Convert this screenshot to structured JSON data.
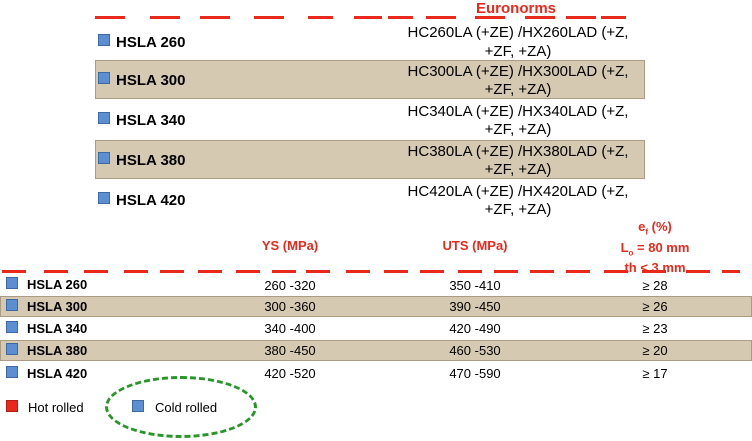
{
  "top_table": {
    "header": "Euronorms",
    "rows": [
      {
        "name": "HSLA 260",
        "norm_line1": "HC260LA (+ZE) /HX260LAD (+Z,",
        "norm_line2": "+ZF, +ZA)"
      },
      {
        "name": "HSLA 300",
        "norm_line1": "HC300LA (+ZE) /HX300LAD (+Z,",
        "norm_line2": "+ZF, +ZA)"
      },
      {
        "name": "HSLA 340",
        "norm_line1": "HC340LA (+ZE) /HX340LAD (+Z,",
        "norm_line2": "+ZF, +ZA)"
      },
      {
        "name": "HSLA 380",
        "norm_line1": "HC380LA (+ZE) /HX380LAD (+Z,",
        "norm_line2": "+ZF, +ZA)"
      },
      {
        "name": "HSLA 420",
        "norm_line1": "HC420LA (+ZE) /HX420LAD (+Z,",
        "norm_line2": "+ZF, +ZA)"
      }
    ]
  },
  "bottom_table": {
    "headers": {
      "ys": "YS (MPa)",
      "uts": "UTS (MPa)",
      "ef_e": "e",
      "ef_sub": "f",
      "ef_pct": " (%)",
      "ef_l": "L",
      "ef_lsub": "o",
      "ef_lval": " = 80 mm",
      "ef_th": "th < 3 mm"
    },
    "rows": [
      {
        "name": "HSLA 260",
        "ys": "260 -320",
        "uts": "350 -410",
        "ef": "≥ 28"
      },
      {
        "name": "HSLA 300",
        "ys": "300 -360",
        "uts": "390 -450",
        "ef": "≥ 26"
      },
      {
        "name": "HSLA 340",
        "ys": "340 -400",
        "uts": "420 -490",
        "ef": "≥ 23"
      },
      {
        "name": "HSLA 380",
        "ys": "380 -450",
        "uts": "460 -530",
        "ef": "≥ 20"
      },
      {
        "name": "HSLA 420",
        "ys": "420 -520",
        "uts": "470 -590",
        "ef": "≥ 17"
      }
    ]
  },
  "legend": {
    "hot": "Hot rolled",
    "cold": "Cold rolled"
  },
  "colors": {
    "accent_red": "#e8291c",
    "cold_blue": "#5b8fd1",
    "band": "#d6c9b1",
    "ellipse_green": "#29962a"
  }
}
